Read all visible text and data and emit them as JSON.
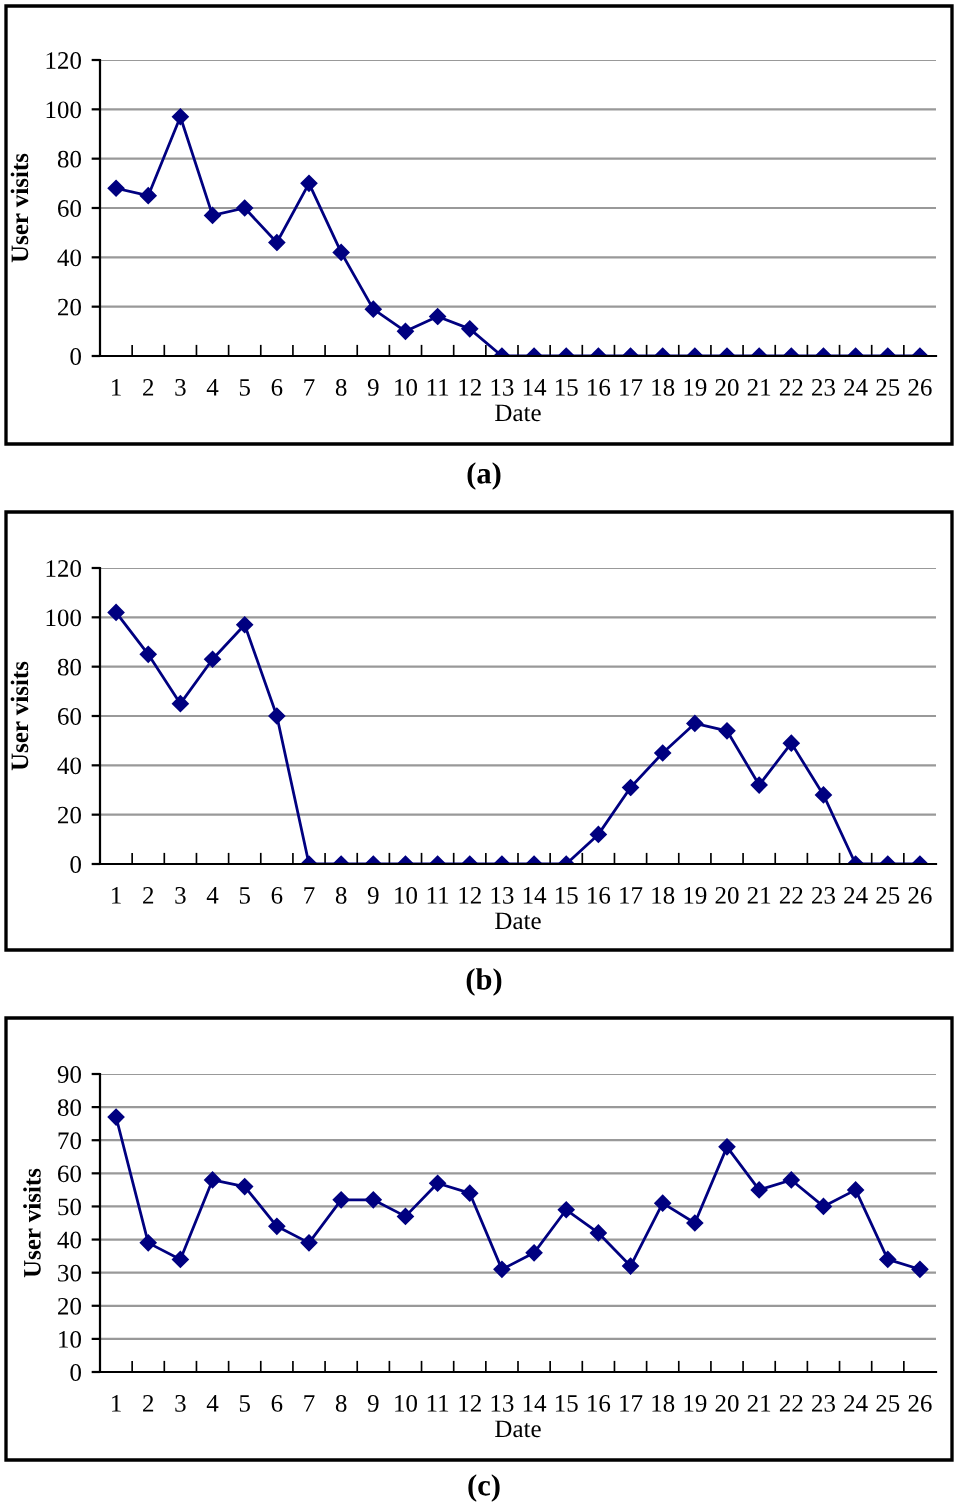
{
  "chart_data": [
    {
      "type": "line",
      "xlabel": "Date",
      "ylabel": "User visits",
      "annotations": [
        "(a)"
      ],
      "categories": [
        "1",
        "2",
        "3",
        "4",
        "5",
        "6",
        "7",
        "8",
        "9",
        "10",
        "11",
        "12",
        "13",
        "14",
        "15",
        "16",
        "17",
        "18",
        "19",
        "20",
        "21",
        "22",
        "23",
        "24",
        "25",
        "26"
      ],
      "series": [
        {
          "color": "#000080",
          "values": [
            68,
            65,
            97,
            57,
            60,
            46,
            70,
            42,
            19,
            10,
            16,
            11,
            0,
            0,
            0,
            0,
            0,
            0,
            0,
            0,
            0,
            0,
            0,
            0,
            0,
            0
          ]
        }
      ],
      "ylim": [
        0,
        120
      ],
      "yticks": [
        0,
        20,
        40,
        60,
        80,
        100,
        120
      ],
      "grid": "y",
      "marker": "diamond"
    },
    {
      "type": "line",
      "xlabel": "Date",
      "ylabel": "User visits",
      "annotations": [
        "(b)"
      ],
      "categories": [
        "1",
        "2",
        "3",
        "4",
        "5",
        "6",
        "7",
        "8",
        "9",
        "10",
        "11",
        "12",
        "13",
        "14",
        "15",
        "16",
        "17",
        "18",
        "19",
        "20",
        "21",
        "22",
        "23",
        "24",
        "25",
        "26"
      ],
      "series": [
        {
          "color": "#000080",
          "values": [
            102,
            85,
            65,
            83,
            97,
            60,
            0,
            0,
            0,
            0,
            0,
            0,
            0,
            0,
            0,
            12,
            31,
            45,
            57,
            54,
            32,
            49,
            28,
            0,
            0,
            0
          ]
        }
      ],
      "ylim": [
        0,
        120
      ],
      "yticks": [
        0,
        20,
        40,
        60,
        80,
        100,
        120
      ],
      "grid": "y",
      "marker": "diamond"
    },
    {
      "type": "line",
      "xlabel": "Date",
      "ylabel": "User visits",
      "annotations": [
        "(c)"
      ],
      "categories": [
        "1",
        "2",
        "3",
        "4",
        "5",
        "6",
        "7",
        "8",
        "9",
        "10",
        "11",
        "12",
        "13",
        "14",
        "15",
        "16",
        "17",
        "18",
        "19",
        "20",
        "21",
        "22",
        "23",
        "24",
        "25",
        "26"
      ],
      "series": [
        {
          "color": "#000080",
          "values": [
            77,
            39,
            34,
            58,
            56,
            44,
            39,
            52,
            52,
            47,
            57,
            54,
            31,
            36,
            49,
            42,
            32,
            51,
            45,
            68,
            55,
            58,
            50,
            55,
            34,
            31
          ]
        }
      ],
      "ylim": [
        0,
        90
      ],
      "yticks": [
        0,
        10,
        20,
        30,
        40,
        50,
        60,
        70,
        80,
        90
      ],
      "grid": "y",
      "marker": "diamond"
    }
  ]
}
